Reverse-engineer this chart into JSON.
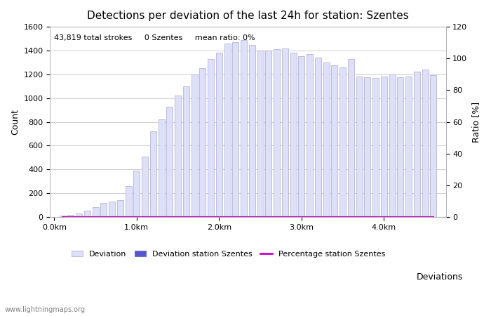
{
  "title": "Detections per deviation of the last 24h for station: Szentes",
  "xlabel": "Deviations",
  "ylabel_left": "Count",
  "ylabel_right": "Ratio [%]",
  "annotation": "43,819 total strokes     0 Szentes     mean ratio: 0%",
  "watermark": "www.lightningmaps.org",
  "ylim_left": [
    0,
    1600
  ],
  "ylim_right": [
    0,
    120
  ],
  "yticks_left": [
    0,
    200,
    400,
    600,
    800,
    1000,
    1200,
    1400,
    1600
  ],
  "yticks_right": [
    0,
    20,
    40,
    60,
    80,
    100,
    120
  ],
  "bar_width": 0.08,
  "bar_color_deviation": "#dde0f8",
  "bar_color_station": "#5555cc",
  "bar_edgecolor": "#aaaacc",
  "line_color": "#cc00cc",
  "background_color": "#ffffff",
  "grid_color": "#cccccc",
  "deviations": [
    0.1,
    0.2,
    0.3,
    0.4,
    0.5,
    0.6,
    0.7,
    0.8,
    0.9,
    1.0,
    1.1,
    1.2,
    1.3,
    1.4,
    1.5,
    1.6,
    1.7,
    1.8,
    1.9,
    2.0,
    2.1,
    2.2,
    2.3,
    2.4,
    2.5,
    2.6,
    2.7,
    2.8,
    2.9,
    3.0,
    3.1,
    3.2,
    3.3,
    3.4,
    3.5,
    3.6,
    3.7,
    3.8,
    3.9,
    4.0,
    4.1,
    4.2,
    4.3,
    4.4,
    4.5,
    4.6
  ],
  "counts_deviation": [
    10,
    20,
    30,
    50,
    80,
    120,
    130,
    140,
    260,
    390,
    510,
    720,
    820,
    930,
    1020,
    1100,
    1200,
    1250,
    1330,
    1380,
    1460,
    1470,
    1490,
    1450,
    1400,
    1400,
    1410,
    1420,
    1380,
    1350,
    1370,
    1340,
    1300,
    1275,
    1260,
    1330,
    1180,
    1175,
    1170,
    1180,
    1200,
    1175,
    1180,
    1220,
    1240,
    1195
  ],
  "counts_station": [
    0,
    0,
    0,
    0,
    0,
    0,
    0,
    0,
    0,
    0,
    0,
    0,
    0,
    0,
    0,
    0,
    0,
    0,
    0,
    0,
    0,
    0,
    0,
    0,
    0,
    0,
    0,
    0,
    0,
    0,
    0,
    0,
    0,
    0,
    0,
    0,
    0,
    0,
    0,
    0,
    0,
    0,
    0,
    0,
    0,
    0
  ],
  "ratio_station": [
    0,
    0,
    0,
    0,
    0,
    0,
    0,
    0,
    0,
    0,
    0,
    0,
    0,
    0,
    0,
    0,
    0,
    0,
    0,
    0,
    0,
    0,
    0,
    0,
    0,
    0,
    0,
    0,
    0,
    0,
    0,
    0,
    0,
    0,
    0,
    0,
    0,
    0,
    0,
    0,
    0,
    0,
    0,
    0,
    0,
    0
  ],
  "xtick_positions": [
    0.0,
    1.0,
    2.0,
    3.0,
    4.0
  ],
  "xtick_labels": [
    "0.0km",
    "1.0km",
    "2.0km",
    "3.0km",
    "4.0km"
  ],
  "title_fontsize": 11,
  "label_fontsize": 9,
  "tick_fontsize": 8,
  "legend_fontsize": 8,
  "annotation_fontsize": 8
}
